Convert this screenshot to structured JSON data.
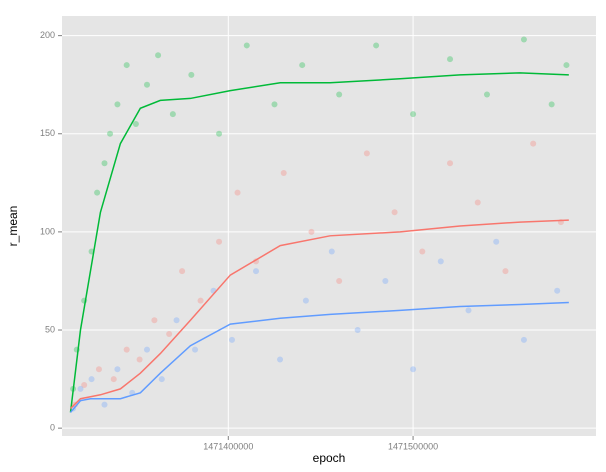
{
  "chart_data": {
    "type": "scatter",
    "xlabel": "epoch",
    "ylabel": "r_mean",
    "xlim": [
      1471310000,
      1471599000
    ],
    "ylim": [
      -4,
      210
    ],
    "xticks": [
      1471400000,
      1471500000
    ],
    "yticks": [
      0,
      50,
      100,
      150,
      200
    ],
    "grid": true,
    "smooth_x": [
      1471314600,
      1471320000,
      1471325400,
      1471330800,
      1471341600,
      1471352400,
      1471363200,
      1471379500,
      1471401100,
      1471428100,
      1471455100,
      1471493000,
      1471525400,
      1471557800,
      1471584300
    ],
    "series": [
      {
        "color": "#00ba38",
        "x": [
          1471316000,
          1471318000,
          1471322000,
          1471326000,
          1471329000,
          1471333000,
          1471336000,
          1471340000,
          1471345000,
          1471350000,
          1471356000,
          1471362000,
          1471370000,
          1471380000,
          1471395000,
          1471410000,
          1471425000,
          1471440000,
          1471460000,
          1471480000,
          1471500000,
          1471520000,
          1471540000,
          1471560000,
          1471575000,
          1471583000
        ],
        "values": [
          20,
          40,
          65,
          90,
          120,
          135,
          150,
          165,
          185,
          155,
          175,
          190,
          160,
          180,
          150,
          195,
          165,
          185,
          170,
          195,
          160,
          188,
          170,
          198,
          165,
          185
        ],
        "smooth_values": [
          8,
          50,
          80,
          110,
          145,
          163,
          167,
          168,
          172,
          176,
          176,
          178,
          180,
          181,
          180
        ]
      },
      {
        "color": "#f8766d",
        "x": [
          1471317000,
          1471322000,
          1471330000,
          1471338000,
          1471345000,
          1471352000,
          1471360000,
          1471368000,
          1471375000,
          1471385000,
          1471395000,
          1471405000,
          1471415000,
          1471430000,
          1471445000,
          1471460000,
          1471475000,
          1471490000,
          1471505000,
          1471520000,
          1471535000,
          1471550000,
          1471565000,
          1471580000
        ],
        "values": [
          12,
          22,
          30,
          25,
          40,
          35,
          55,
          48,
          80,
          65,
          95,
          120,
          85,
          130,
          100,
          75,
          140,
          110,
          90,
          135,
          115,
          80,
          145,
          105
        ],
        "smooth_values": [
          10,
          15,
          16,
          17,
          20,
          28,
          38,
          55,
          78,
          93,
          98,
          100,
          103,
          105,
          106
        ]
      },
      {
        "color": "#619cff",
        "x": [
          1471316000,
          1471320000,
          1471326000,
          1471333000,
          1471340000,
          1471348000,
          1471356000,
          1471364000,
          1471372000,
          1471382000,
          1471392000,
          1471402000,
          1471415000,
          1471428000,
          1471442000,
          1471456000,
          1471470000,
          1471485000,
          1471500000,
          1471515000,
          1471530000,
          1471545000,
          1471560000,
          1471578000
        ],
        "values": [
          10,
          20,
          25,
          12,
          30,
          18,
          40,
          25,
          55,
          40,
          70,
          45,
          80,
          35,
          65,
          90,
          50,
          75,
          30,
          85,
          60,
          95,
          45,
          70
        ],
        "smooth_values": [
          8,
          14,
          15,
          15,
          15,
          18,
          28,
          42,
          53,
          56,
          58,
          60,
          62,
          63,
          64
        ]
      }
    ]
  }
}
